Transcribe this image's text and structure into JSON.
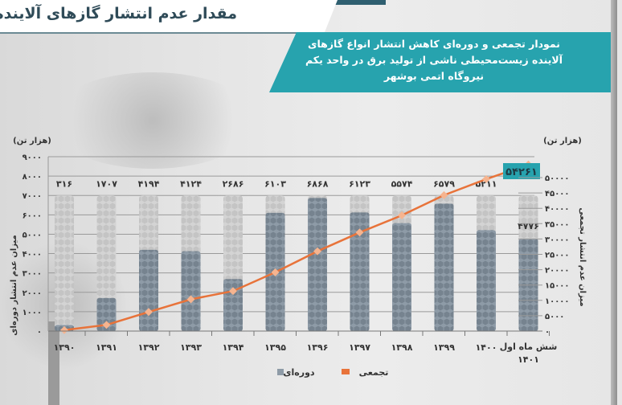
{
  "header": {
    "title": "مقدار عدم انتشار گازهای آلاینده"
  },
  "subtitle_lines": [
    "نمودار تجمعی و دوره‌ای کاهش انتشار انواع گازهای",
    "آلاینده زیست‌محیطی ناشی از تولید برق در واحد یکم",
    "نیروگاه اتمی بوشهر"
  ],
  "colors": {
    "teal": "#27a3ae",
    "cumulative": "#e8733a",
    "periodic": "#7f8d9a",
    "column_bg": "#c9c9c9"
  },
  "chart_data": {
    "type": "bar+line",
    "categories": [
      "۱۳۹۰",
      "۱۳۹۱",
      "۱۳۹۲",
      "۱۳۹۳",
      "۱۳۹۴",
      "۱۳۹۵",
      "۱۳۹۶",
      "۱۳۹۷",
      "۱۳۹۸",
      "۱۳۹۹",
      "۱۴۰۰",
      "شش ماه اول ۱۴۰۱"
    ],
    "series": [
      {
        "name": "دوره‌ای",
        "type": "bar",
        "axis": "left",
        "values": [
          316,
          1707,
          4194,
          4124,
          2686,
          6103,
          6868,
          6123,
          5574,
          6579,
          5211,
          4776
        ],
        "labels": [
          "۳۱۶",
          "۱۷۰۷",
          "۴۱۹۴",
          "۴۱۲۴",
          "۲۶۸۶",
          "۶۱۰۳",
          "۶۸۶۸",
          "۶۱۲۳",
          "۵۵۷۴",
          "۶۵۷۹",
          "۵۲۱۱",
          "۴۷۷۶"
        ]
      },
      {
        "name": "تجمعی",
        "type": "line",
        "axis": "right",
        "values": [
          316,
          2023,
          6217,
          10341,
          13027,
          19130,
          25998,
          32121,
          37695,
          44274,
          49485,
          54261
        ],
        "end_label": "۵۴۲۶۱"
      }
    ],
    "left_axis": {
      "unit": "(هزار تن)",
      "label": "میزان عدم انتشار دوره‌ای",
      "range": [
        0,
        9000
      ],
      "ticks": [
        "۰",
        "۱۰۰۰",
        "۲۰۰۰",
        "۳۰۰۰",
        "۴۰۰۰",
        "۵۰۰۰",
        "۶۰۰۰",
        "۷۰۰۰",
        "۸۰۰۰",
        "۹۰۰۰"
      ]
    },
    "right_axis": {
      "unit": "(هزار تن)",
      "label": "میزان عدم انتشار تجمعی",
      "range": [
        0,
        50000
      ],
      "ticks": [
        "۰",
        "۵۰۰۰",
        "۱۰۰۰۰",
        "۱۵۰۰۰",
        "۲۰۰۰۰",
        "۲۵۰۰۰",
        "۳۰۰۰۰",
        "۳۵۰۰۰",
        "۴۰۰۰۰",
        "۴۵۰۰۰",
        "۵۰۰۰۰"
      ]
    },
    "grid": true,
    "legend": {
      "position": "bottom",
      "items": [
        "تجمعی",
        "دوره‌ای"
      ]
    }
  }
}
